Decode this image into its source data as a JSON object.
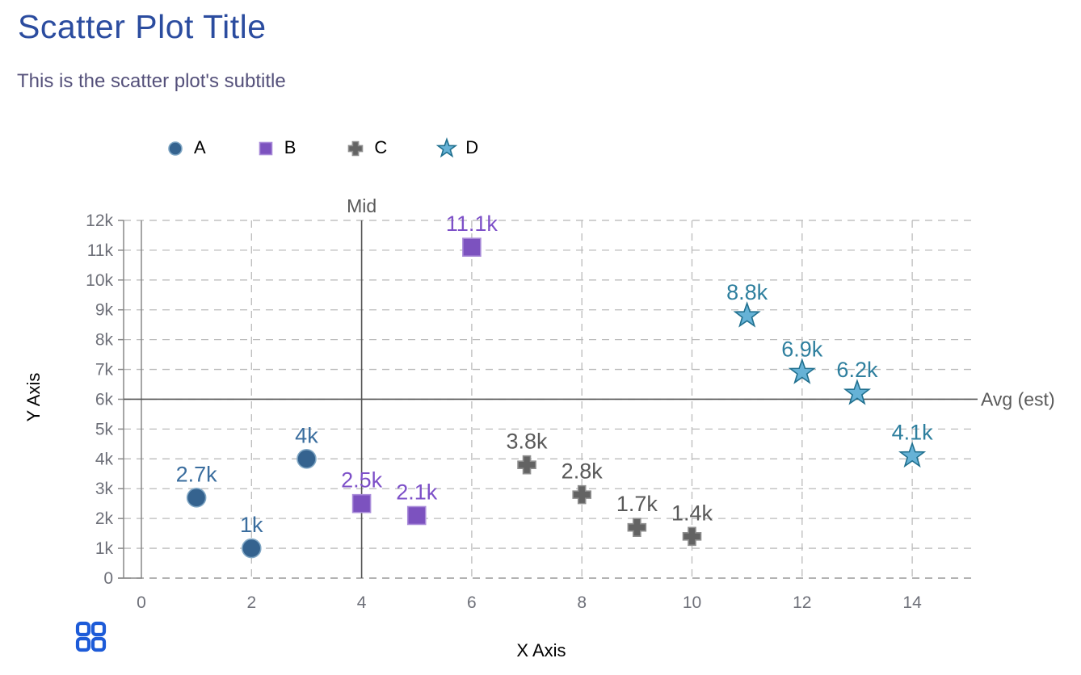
{
  "header": {
    "title": "Scatter Plot Title",
    "subtitle": "This is the scatter plot's subtitle",
    "title_color": "#2B4C9F",
    "subtitle_color": "#54507A"
  },
  "toolbox": {
    "icon": "grid-2x2-icon",
    "color": "#1D5BD8"
  },
  "chart_data": {
    "type": "scatter",
    "title": "Scatter Plot Title",
    "subtitle": "This is the scatter plot's subtitle",
    "xlabel": "X Axis",
    "ylabel": "Y Axis",
    "xlim": [
      0,
      15.1
    ],
    "ylim": [
      0,
      12000
    ],
    "x_ticks": [
      0,
      2,
      4,
      6,
      8,
      10,
      12,
      14
    ],
    "x_tick_labels": [
      "0",
      "2",
      "4",
      "6",
      "8",
      "10",
      "12",
      "14"
    ],
    "y_ticks": [
      0,
      1000,
      2000,
      3000,
      4000,
      5000,
      6000,
      7000,
      8000,
      9000,
      10000,
      11000,
      12000
    ],
    "y_tick_labels": [
      "0",
      "1k",
      "2k",
      "3k",
      "4k",
      "5k",
      "6k",
      "7k",
      "8k",
      "9k",
      "10k",
      "11k",
      "12k"
    ],
    "grid": {
      "style": "dashed",
      "color": "#BBBBBB",
      "on": true
    },
    "axis": {
      "line_color": "#888888",
      "tick_label_color": "#6E7079",
      "name_color": "#000000"
    },
    "legend_position": "top",
    "series": [
      {
        "name": "A",
        "symbol": "circle",
        "color": "#35638F",
        "border": "#7FA6C4",
        "label_color": "#3A6D9E",
        "points": [
          {
            "x": 1,
            "y": 2700,
            "label": "2.7k"
          },
          {
            "x": 2,
            "y": 1000,
            "label": "1k"
          },
          {
            "x": 3,
            "y": 4000,
            "label": "4k"
          }
        ]
      },
      {
        "name": "B",
        "symbol": "square",
        "color": "#7C52BF",
        "border": "#A98BD9",
        "label_color": "#7D50C8",
        "points": [
          {
            "x": 4,
            "y": 2500,
            "label": "2.5k"
          },
          {
            "x": 5,
            "y": 2100,
            "label": "2.1k"
          },
          {
            "x": 6,
            "y": 11100,
            "label": "11.1k"
          }
        ]
      },
      {
        "name": "C",
        "symbol": "cross",
        "color": "#636363",
        "border": "#8F8F8F",
        "label_color": "#595959",
        "points": [
          {
            "x": 7,
            "y": 3800,
            "label": "3.8k"
          },
          {
            "x": 8,
            "y": 2800,
            "label": "2.8k"
          },
          {
            "x": 9,
            "y": 1700,
            "label": "1.7k"
          },
          {
            "x": 10,
            "y": 1400,
            "label": "1.4k"
          }
        ]
      },
      {
        "name": "D",
        "symbol": "star",
        "color": "#66B2D6",
        "border": "#20708F",
        "label_color": "#2E7F9E",
        "points": [
          {
            "x": 11,
            "y": 8800,
            "label": "8.8k"
          },
          {
            "x": 12,
            "y": 6900,
            "label": "6.9k"
          },
          {
            "x": 13,
            "y": 6200,
            "label": "6.2k"
          },
          {
            "x": 14,
            "y": 4100,
            "label": "4.1k"
          }
        ]
      }
    ],
    "marklines": [
      {
        "orientation": "vertical",
        "x": 4,
        "label": "Mid"
      },
      {
        "orientation": "horizontal",
        "y": 6000,
        "label": "Avg (est)"
      }
    ],
    "markline_style": {
      "color": "#555555",
      "label_color": "#595959"
    }
  }
}
